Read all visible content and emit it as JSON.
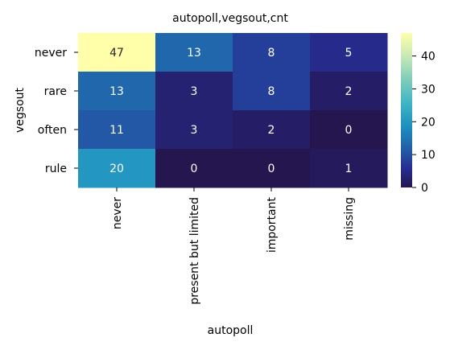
{
  "chart_data": {
    "type": "heatmap",
    "title": "autopoll,vegsout,cnt",
    "xlabel": "autopoll",
    "ylabel": "vegsout",
    "x_categories": [
      "never",
      "present but limited",
      "important",
      "missing"
    ],
    "y_categories": [
      "never",
      "rare",
      "often",
      "rule"
    ],
    "values": [
      [
        47,
        13,
        8,
        5
      ],
      [
        13,
        3,
        8,
        2
      ],
      [
        11,
        3,
        2,
        0
      ],
      [
        20,
        0,
        0,
        1
      ]
    ],
    "colormap": "YlGnBu_r",
    "vmin": 0,
    "vmax": 47,
    "colorbar_ticks": [
      0,
      10,
      20,
      30,
      40
    ],
    "grid": false,
    "annotations": true
  }
}
